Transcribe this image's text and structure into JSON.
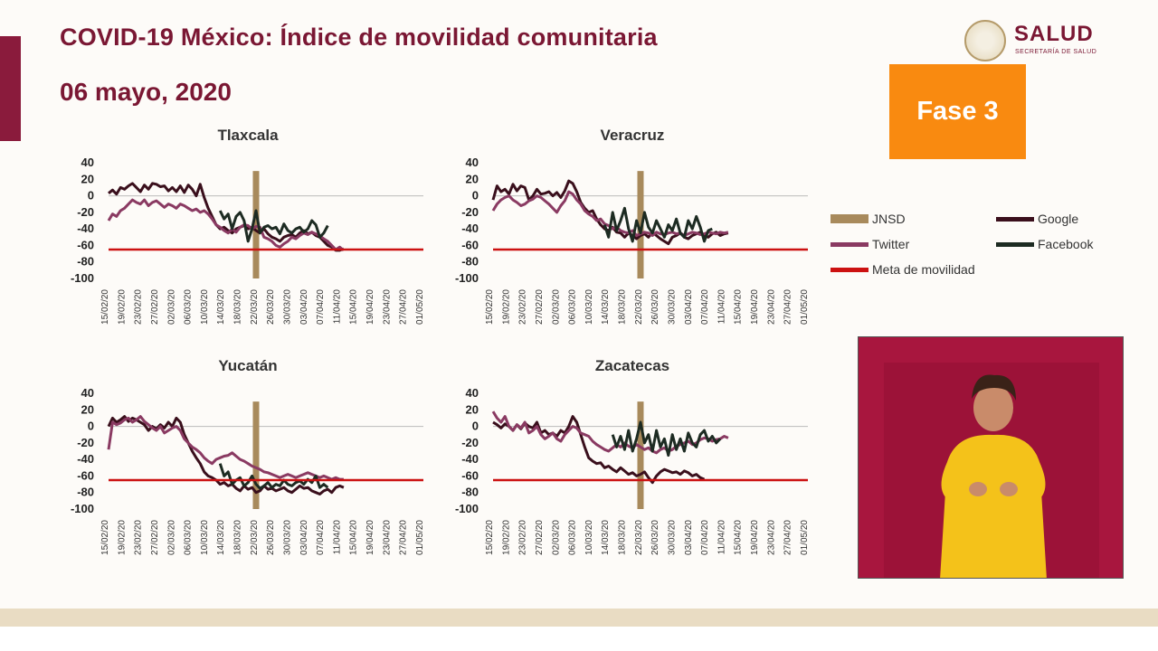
{
  "header": {
    "title": "COVID-19 México: Índice de movilidad comunitaria",
    "date": "06 mayo, 2020",
    "logo_text": "SALUD",
    "logo_subtext": "SECRETARÍA DE SALUD",
    "phase": "Fase 3"
  },
  "legend": [
    {
      "label": "JNSD",
      "color": "#a88a5c"
    },
    {
      "label": "Google",
      "color": "#3a0f1c"
    },
    {
      "label": "Twitter",
      "color": "#8a3a62"
    },
    {
      "label": "Facebook",
      "color": "#1d2b22"
    },
    {
      "label": "Meta de movilidad",
      "color": "#cc1111"
    }
  ],
  "chart_data": [
    {
      "type": "line",
      "title": "Tlaxcala",
      "ylim": [
        -100,
        40
      ],
      "yticks": [
        "40",
        "20",
        "0",
        "-20",
        "-40",
        "-60",
        "-80",
        "-100"
      ],
      "xticks": [
        "15/02/20",
        "19/02/20",
        "23/02/20",
        "27/02/20",
        "02/03/20",
        "06/03/20",
        "10/03/20",
        "14/03/20",
        "18/03/20",
        "22/03/20",
        "26/03/20",
        "30/03/20",
        "03/04/20",
        "07/04/20",
        "11/04/20",
        "15/04/20",
        "19/04/20",
        "23/04/20",
        "27/04/20",
        "01/05/20"
      ],
      "jnsd_x": 37,
      "meta": -65,
      "series": [
        {
          "name": "Google",
          "start": 0,
          "values": [
            3,
            7,
            2,
            10,
            8,
            12,
            15,
            10,
            5,
            13,
            8,
            15,
            14,
            11,
            12,
            6,
            10,
            5,
            12,
            4,
            13,
            8,
            0,
            14,
            -2,
            -15,
            -25,
            -35,
            -40,
            -38,
            -42,
            -45,
            -40,
            -38,
            -36,
            -40,
            -38,
            -42,
            -45,
            -40,
            -46,
            -50,
            -52,
            -55,
            -50,
            -48,
            -47,
            -50,
            -45,
            -42,
            -46,
            -44,
            -48,
            -50,
            -55,
            -60,
            -62,
            -66,
            -66,
            -64
          ]
        },
        {
          "name": "Twitter",
          "start": 0,
          "values": [
            -30,
            -22,
            -25,
            -18,
            -15,
            -10,
            -5,
            -8,
            -10,
            -5,
            -12,
            -8,
            -6,
            -10,
            -14,
            -10,
            -12,
            -15,
            -10,
            -12,
            -15,
            -18,
            -16,
            -20,
            -18,
            -22,
            -28,
            -35,
            -38,
            -42,
            -45,
            -40,
            -44,
            -38,
            -35,
            -36,
            -40,
            -37,
            -38,
            -50,
            -52,
            -55,
            -60,
            -62,
            -58,
            -55,
            -50,
            -52,
            -48,
            -45,
            -47,
            -44,
            -46,
            -48,
            -52,
            -55,
            -60,
            -65,
            -62,
            -66
          ]
        },
        {
          "name": "Facebook",
          "start": 28,
          "values": [
            -18,
            -28,
            -22,
            -40,
            -25,
            -20,
            -30,
            -55,
            -40,
            -18,
            -45,
            -38,
            -36,
            -40,
            -38,
            -46,
            -34,
            -42,
            -45,
            -40,
            -38,
            -44,
            -40,
            -30,
            -35,
            -50,
            -45,
            -36
          ]
        }
      ]
    },
    {
      "type": "line",
      "title": "Veracruz",
      "ylim": [
        -100,
        40
      ],
      "yticks": [
        "40",
        "20",
        "0",
        "-20",
        "-40",
        "-60",
        "-80",
        "-100"
      ],
      "xticks": [
        "15/02/20",
        "19/02/20",
        "23/02/20",
        "27/02/20",
        "02/03/20",
        "06/03/20",
        "10/03/20",
        "14/03/20",
        "18/03/20",
        "22/03/20",
        "26/03/20",
        "30/03/20",
        "03/04/20",
        "07/04/20",
        "11/04/20",
        "15/04/20",
        "19/04/20",
        "23/04/20",
        "27/04/20",
        "01/05/20"
      ],
      "jnsd_x": 37,
      "meta": -65,
      "series": [
        {
          "name": "Google",
          "start": 0,
          "values": [
            -5,
            12,
            5,
            8,
            2,
            14,
            6,
            12,
            10,
            -5,
            0,
            8,
            2,
            3,
            5,
            0,
            4,
            -2,
            6,
            18,
            15,
            5,
            -8,
            -15,
            -20,
            -18,
            -28,
            -35,
            -40,
            -42,
            -38,
            -44,
            -45,
            -50,
            -45,
            -48,
            -52,
            -48,
            -46,
            -50,
            -44,
            -48,
            -52,
            -55,
            -58,
            -50,
            -48,
            -45,
            -50,
            -52,
            -48,
            -46,
            -44,
            -48,
            -50,
            -46,
            -44,
            -48,
            -46,
            -45
          ]
        },
        {
          "name": "Twitter",
          "start": 0,
          "values": [
            -18,
            -10,
            -5,
            -2,
            0,
            -5,
            -8,
            -12,
            -10,
            -6,
            -4,
            0,
            -2,
            -6,
            -10,
            -15,
            -20,
            -12,
            -6,
            5,
            2,
            -5,
            -10,
            -18,
            -22,
            -25,
            -30,
            -28,
            -34,
            -36,
            -40,
            -38,
            -42,
            -44,
            -45,
            -42,
            -48,
            -46,
            -44,
            -45,
            -48,
            -44,
            -46,
            -47,
            -45,
            -44,
            -46,
            -45,
            -48,
            -46,
            -44,
            -45,
            -47,
            -46,
            -44,
            -45,
            -46,
            -44,
            -45,
            -44
          ]
        },
        {
          "name": "Facebook",
          "start": 28,
          "values": [
            -35,
            -50,
            -20,
            -42,
            -30,
            -15,
            -40,
            -55,
            -30,
            -45,
            -20,
            -38,
            -45,
            -30,
            -40,
            -50,
            -35,
            -42,
            -28,
            -45,
            -50,
            -30,
            -40,
            -25,
            -38,
            -55,
            -42,
            -40
          ]
        }
      ]
    },
    {
      "type": "line",
      "title": "Yucatán",
      "ylim": [
        -100,
        40
      ],
      "yticks": [
        "40",
        "20",
        "0",
        "-20",
        "-40",
        "-60",
        "-80",
        "-100"
      ],
      "xticks": [
        "15/02/20",
        "19/02/20",
        "23/02/20",
        "27/02/20",
        "02/03/20",
        "06/03/20",
        "10/03/20",
        "14/03/20",
        "18/03/20",
        "22/03/20",
        "26/03/20",
        "30/03/20",
        "03/04/20",
        "07/04/20",
        "11/04/20",
        "15/04/20",
        "19/04/20",
        "23/04/20",
        "27/04/20",
        "01/05/20"
      ],
      "jnsd_x": 37,
      "meta": -65,
      "series": [
        {
          "name": "Google",
          "start": 0,
          "values": [
            0,
            10,
            5,
            8,
            12,
            6,
            10,
            8,
            5,
            2,
            -5,
            0,
            -3,
            2,
            -2,
            5,
            0,
            10,
            5,
            -10,
            -20,
            -30,
            -38,
            -45,
            -55,
            -60,
            -62,
            -65,
            -70,
            -68,
            -72,
            -70,
            -75,
            -78,
            -72,
            -76,
            -74,
            -80,
            -78,
            -72,
            -76,
            -75,
            -78,
            -76,
            -74,
            -78,
            -80,
            -76,
            -72,
            -75,
            -74,
            -78,
            -80,
            -82,
            -78,
            -76,
            -80,
            -74,
            -72,
            -74
          ]
        },
        {
          "name": "Twitter",
          "start": 0,
          "values": [
            -28,
            5,
            2,
            4,
            8,
            10,
            5,
            8,
            12,
            6,
            2,
            -2,
            -5,
            0,
            -8,
            -5,
            -2,
            0,
            -5,
            -15,
            -20,
            -25,
            -28,
            -32,
            -38,
            -42,
            -45,
            -40,
            -38,
            -36,
            -35,
            -32,
            -36,
            -40,
            -42,
            -45,
            -48,
            -50,
            -52,
            -55,
            -56,
            -58,
            -60,
            -62,
            -60,
            -58,
            -60,
            -62,
            -60,
            -58,
            -56,
            -58,
            -60,
            -62,
            -60,
            -62,
            -64,
            -62,
            -64,
            -64
          ]
        },
        {
          "name": "Facebook",
          "start": 28,
          "values": [
            -45,
            -60,
            -55,
            -70,
            -65,
            -62,
            -72,
            -68,
            -60,
            -70,
            -75,
            -72,
            -68,
            -74,
            -70,
            -72,
            -65,
            -70,
            -72,
            -68,
            -66,
            -70,
            -64,
            -68,
            -60,
            -74,
            -70,
            -74
          ]
        }
      ]
    },
    {
      "type": "line",
      "title": "Zacatecas",
      "ylim": [
        -100,
        40
      ],
      "yticks": [
        "40",
        "20",
        "0",
        "-20",
        "-40",
        "-60",
        "-80",
        "-100"
      ],
      "xticks": [
        "15/02/20",
        "19/02/20",
        "23/02/20",
        "27/02/20",
        "02/03/20",
        "06/03/20",
        "10/03/20",
        "14/03/20",
        "18/03/20",
        "22/03/20",
        "26/03/20",
        "30/03/20",
        "03/04/20",
        "07/04/20",
        "11/04/20",
        "15/04/20",
        "19/04/20",
        "23/04/20",
        "27/04/20",
        "01/05/20"
      ],
      "jnsd_x": 37,
      "meta": -65,
      "series": [
        {
          "name": "Google",
          "start": 0,
          "values": [
            5,
            2,
            -2,
            3,
            0,
            -5,
            2,
            -3,
            4,
            0,
            -2,
            5,
            -8,
            -5,
            -10,
            -8,
            -12,
            -5,
            -8,
            0,
            12,
            5,
            -10,
            -25,
            -38,
            -42,
            -45,
            -44,
            -50,
            -48,
            -52,
            -55,
            -50,
            -54,
            -58,
            -56,
            -60,
            -58,
            -55,
            -62,
            -68,
            -60,
            -55,
            -52,
            -54,
            -56,
            -55,
            -58,
            -54,
            -56,
            -60,
            -58,
            -62,
            -64
          ]
        },
        {
          "name": "Twitter",
          "start": 0,
          "values": [
            18,
            10,
            5,
            12,
            0,
            -5,
            2,
            -2,
            5,
            -8,
            -5,
            0,
            -10,
            -15,
            -12,
            -8,
            -15,
            -18,
            -10,
            -5,
            0,
            -2,
            -8,
            -10,
            -12,
            -18,
            -22,
            -25,
            -28,
            -30,
            -26,
            -22,
            -25,
            -20,
            -24,
            -26,
            -22,
            -25,
            -28,
            -26,
            -30,
            -32,
            -28,
            -26,
            -30,
            -28,
            -24,
            -22,
            -20,
            -18,
            -22,
            -20,
            -16,
            -14,
            -15,
            -18,
            -16,
            -15,
            -12,
            -14
          ]
        },
        {
          "name": "Facebook",
          "start": 30,
          "values": [
            -10,
            -25,
            -12,
            -28,
            -5,
            -30,
            -15,
            5,
            -20,
            -10,
            -30,
            -5,
            -25,
            -15,
            -35,
            -10,
            -28,
            -15,
            -30,
            -8,
            -20,
            -25,
            -10,
            -5,
            -18,
            -12,
            -20,
            -15
          ]
        }
      ]
    }
  ]
}
